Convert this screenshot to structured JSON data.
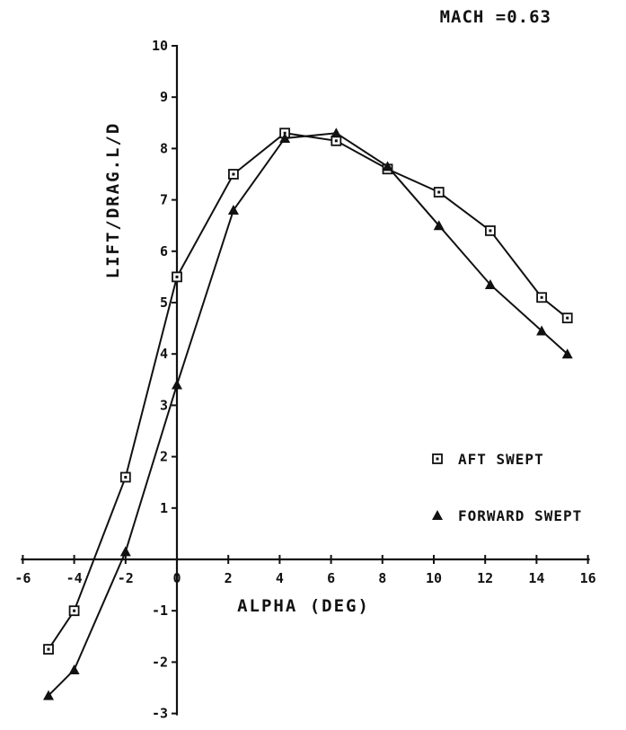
{
  "chart_data": {
    "type": "line",
    "annotation": "MACH =0.63",
    "xlabel": "ALPHA (DEG)",
    "ylabel": "LIFT/DRAG.L/D",
    "xlim": [
      -6,
      16
    ],
    "ylim": [
      -3,
      10
    ],
    "xticks": [
      -6,
      -4,
      -2,
      0,
      2,
      4,
      6,
      8,
      10,
      12,
      14,
      16
    ],
    "xtick_labels": [
      "-6",
      "-4",
      "-2",
      "0",
      "2",
      "4",
      "6",
      "8",
      "10",
      "12",
      "14",
      "16"
    ],
    "yticks": [
      -3,
      -2,
      -1,
      0,
      1,
      2,
      3,
      4,
      5,
      6,
      7,
      8,
      9,
      10
    ],
    "ytick_labels": [
      "-3",
      "-2",
      "-1",
      "0",
      "1",
      "2",
      "3",
      "4",
      "5",
      "6",
      "7",
      "8",
      "9",
      "10"
    ],
    "grid": false,
    "legend_position": "right",
    "series": [
      {
        "name": "AFT SWEPT",
        "marker": "square",
        "color": "#111111",
        "points": [
          [
            -5,
            -1.75
          ],
          [
            -4,
            -1.0
          ],
          [
            -2,
            1.6
          ],
          [
            0,
            5.5
          ],
          [
            2.2,
            7.5
          ],
          [
            4.2,
            8.3
          ],
          [
            6.2,
            8.15
          ],
          [
            8.2,
            7.6
          ],
          [
            10.2,
            7.15
          ],
          [
            12.2,
            6.4
          ],
          [
            14.2,
            5.1
          ],
          [
            15.2,
            4.7
          ]
        ]
      },
      {
        "name": "FORWARD SWEPT",
        "marker": "triangle",
        "color": "#111111",
        "points": [
          [
            -5,
            -2.65
          ],
          [
            -4,
            -2.15
          ],
          [
            -2,
            0.15
          ],
          [
            0,
            3.4
          ],
          [
            2.2,
            6.8
          ],
          [
            4.2,
            8.2
          ],
          [
            6.2,
            8.3
          ],
          [
            8.2,
            7.65
          ],
          [
            10.2,
            6.5
          ],
          [
            12.2,
            5.35
          ],
          [
            14.2,
            4.45
          ],
          [
            15.2,
            4.0
          ]
        ]
      }
    ]
  }
}
